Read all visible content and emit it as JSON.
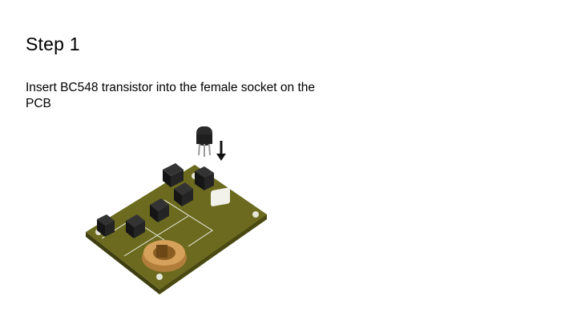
{
  "slide": {
    "title": "Step 1",
    "instruction": "Insert BC548 transistor into the female socket on the PCB"
  },
  "illustration": {
    "subject": "pcb-with-transistor",
    "colors": {
      "board": "#6b6a1e",
      "board_edge": "#4f4e14",
      "silkscreen": "#f2f2ea",
      "socket": "#1e1e1e",
      "battery_holder": "#c8924a",
      "transistor": "#2a2a2a",
      "arrow": "#111111"
    }
  }
}
